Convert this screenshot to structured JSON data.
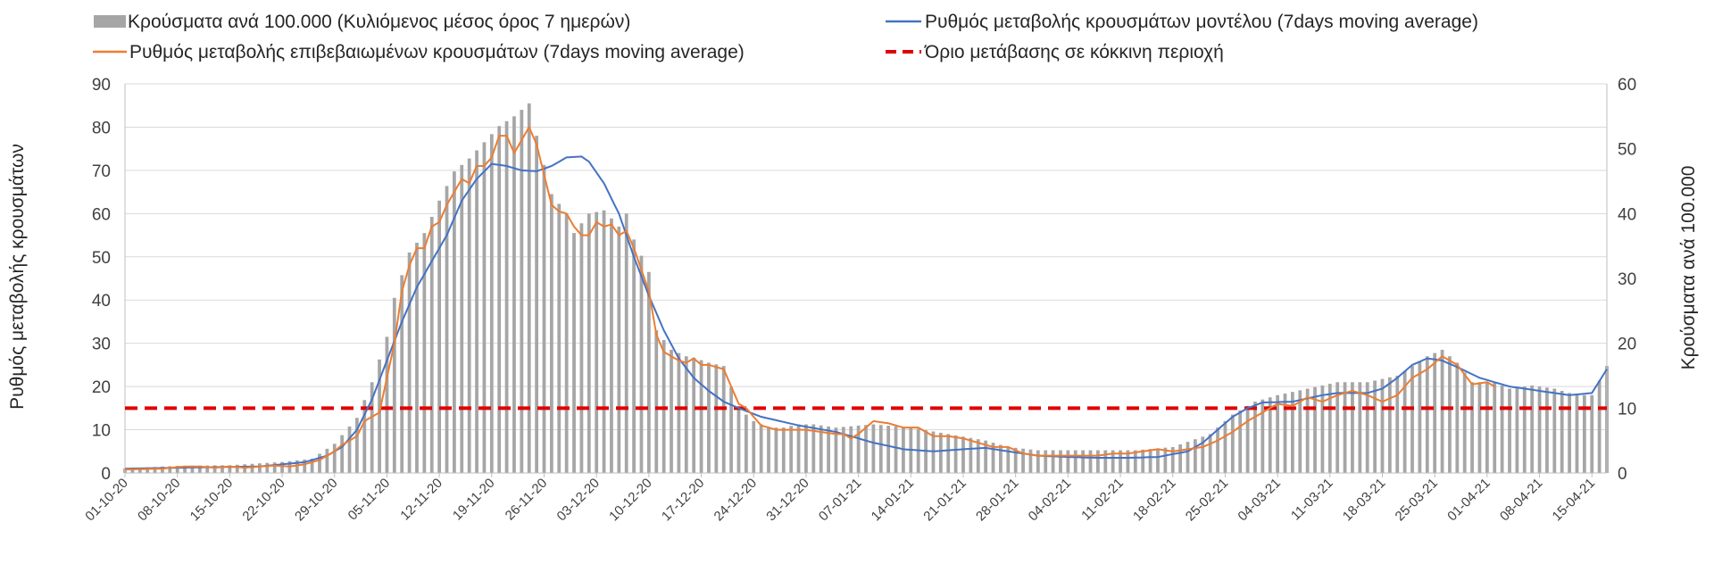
{
  "chart_data": {
    "type": "bar",
    "title": "",
    "left_axis": {
      "label": "Ρυθμός μεταβολής κρουσμάτων",
      "ylim": [
        0,
        90
      ],
      "ticks": [
        0,
        10,
        20,
        30,
        40,
        50,
        60,
        70,
        80,
        90
      ]
    },
    "right_axis": {
      "label": "Κρούσματα ανά 100.000",
      "ylim": [
        0,
        60
      ],
      "ticks": [
        0,
        10,
        20,
        30,
        40,
        50,
        60
      ]
    },
    "x_tick_labels": [
      "01-10-20",
      "08-10-20",
      "15-10-20",
      "22-10-20",
      "29-10-20",
      "05-11-20",
      "12-11-20",
      "19-11-20",
      "26-11-20",
      "03-12-20",
      "10-12-20",
      "17-12-20",
      "24-12-20",
      "31-12-20",
      "07-01-21",
      "14-01-21",
      "21-01-21",
      "28-01-21",
      "04-02-21",
      "11-02-21",
      "18-02-21",
      "25-02-21",
      "04-03-21",
      "11-03-21",
      "18-03-21",
      "25-03-21",
      "01-04-21",
      "08-04-21",
      "15-04-21"
    ],
    "grid": true,
    "legend_position": "top",
    "threshold": 15,
    "colors": {
      "bars": "#a6a6a6",
      "model": "#4472c4",
      "confirmed": "#ed7d31",
      "threshold": "#e00000"
    },
    "series": [
      {
        "name": "Κρούσματα ανά 100.000 (Κυλιόμενος μέσος όρος 7 ημερών)",
        "axis": "right",
        "type": "bar",
        "anchors": [
          [
            0,
            0.7
          ],
          [
            7,
            1.1
          ],
          [
            14,
            1.2
          ],
          [
            21,
            1.7
          ],
          [
            25,
            2.2
          ],
          [
            28,
            4.5
          ],
          [
            31,
            8.5
          ],
          [
            33,
            14
          ],
          [
            35,
            21
          ],
          [
            36,
            27
          ],
          [
            38,
            34
          ],
          [
            40,
            37
          ],
          [
            42,
            42
          ],
          [
            44,
            46.5
          ],
          [
            46,
            48.5
          ],
          [
            48,
            51
          ],
          [
            50,
            53.5
          ],
          [
            52,
            55
          ],
          [
            54,
            57
          ],
          [
            55,
            52
          ],
          [
            57,
            43
          ],
          [
            59,
            40
          ],
          [
            60,
            37
          ],
          [
            62,
            40
          ],
          [
            64,
            40.5
          ],
          [
            66,
            38
          ],
          [
            67,
            40
          ],
          [
            68,
            36
          ],
          [
            70,
            31
          ],
          [
            71,
            22
          ],
          [
            73,
            19
          ],
          [
            75,
            18
          ],
          [
            76,
            17.8
          ],
          [
            78,
            17
          ],
          [
            80,
            16.5
          ],
          [
            82,
            10
          ],
          [
            84,
            8
          ],
          [
            86,
            7
          ],
          [
            88,
            7
          ],
          [
            90,
            7.5
          ],
          [
            92,
            7.5
          ],
          [
            95,
            7
          ],
          [
            100,
            7.5
          ],
          [
            105,
            7
          ],
          [
            110,
            6
          ],
          [
            115,
            5
          ],
          [
            118,
            4
          ],
          [
            122,
            3.5
          ],
          [
            126,
            3.5
          ],
          [
            130,
            3.5
          ],
          [
            135,
            3.5
          ],
          [
            140,
            4
          ],
          [
            145,
            6
          ],
          [
            148,
            9
          ],
          [
            151,
            11
          ],
          [
            154,
            12
          ],
          [
            158,
            13
          ],
          [
            162,
            14
          ],
          [
            166,
            14
          ],
          [
            170,
            15
          ],
          [
            174,
            18
          ],
          [
            176,
            19
          ],
          [
            178,
            17
          ],
          [
            180,
            14
          ],
          [
            183,
            14
          ],
          [
            185,
            13
          ],
          [
            188,
            13.5
          ],
          [
            191,
            13
          ],
          [
            194,
            12
          ],
          [
            196,
            12
          ],
          [
            198,
            16.5
          ]
        ]
      },
      {
        "name": "Ρυθμός μεταβολής κρουσμάτων μοντέλου (7days moving average)",
        "axis": "left",
        "type": "line",
        "anchors": [
          [
            0,
            1
          ],
          [
            10,
            1.3
          ],
          [
            18,
            1.5
          ],
          [
            24,
            2.5
          ],
          [
            27,
            4
          ],
          [
            29,
            6
          ],
          [
            31,
            10
          ],
          [
            33,
            17
          ],
          [
            35,
            26
          ],
          [
            37,
            35
          ],
          [
            39,
            43
          ],
          [
            41,
            49
          ],
          [
            43,
            55
          ],
          [
            45,
            63
          ],
          [
            47,
            68
          ],
          [
            49,
            71.5
          ],
          [
            51,
            71
          ],
          [
            53,
            70
          ],
          [
            55,
            69.8
          ],
          [
            57,
            71
          ],
          [
            59,
            73
          ],
          [
            61,
            73.2
          ],
          [
            62,
            72
          ],
          [
            64,
            67
          ],
          [
            66,
            60
          ],
          [
            68,
            50
          ],
          [
            70,
            41
          ],
          [
            72,
            33
          ],
          [
            74,
            26.5
          ],
          [
            76,
            22
          ],
          [
            78,
            19
          ],
          [
            80,
            16.5
          ],
          [
            82,
            15
          ],
          [
            85,
            13
          ],
          [
            90,
            11
          ],
          [
            95,
            9.5
          ],
          [
            100,
            7
          ],
          [
            104,
            5.5
          ],
          [
            108,
            5
          ],
          [
            112,
            5.5
          ],
          [
            115,
            5.8
          ],
          [
            118,
            5
          ],
          [
            122,
            4
          ],
          [
            126,
            3.7
          ],
          [
            130,
            3.5
          ],
          [
            134,
            3.5
          ],
          [
            138,
            3.7
          ],
          [
            142,
            5
          ],
          [
            144,
            7
          ],
          [
            146,
            10
          ],
          [
            148,
            13
          ],
          [
            150,
            15
          ],
          [
            152,
            16.3
          ],
          [
            156,
            16.5
          ],
          [
            160,
            18
          ],
          [
            162,
            18.5
          ],
          [
            166,
            18.5
          ],
          [
            168,
            19.5
          ],
          [
            170,
            22
          ],
          [
            172,
            25
          ],
          [
            174,
            26.5
          ],
          [
            176,
            26
          ],
          [
            178,
            24.5
          ],
          [
            181,
            22
          ],
          [
            185,
            20
          ],
          [
            189,
            19
          ],
          [
            193,
            18
          ],
          [
            196,
            18.5
          ],
          [
            198,
            24
          ]
        ]
      },
      {
        "name": "Ρυθμός μεταβολής επιβεβαιωμένων κρουσμάτων (7days moving average)",
        "axis": "left",
        "type": "line",
        "anchors": [
          [
            0,
            0.8
          ],
          [
            5,
            1
          ],
          [
            8,
            1.5
          ],
          [
            10,
            1.5
          ],
          [
            12,
            1.2
          ],
          [
            14,
            1.5
          ],
          [
            16,
            1.2
          ],
          [
            18,
            1.5
          ],
          [
            20,
            1.7
          ],
          [
            22,
            1.5
          ],
          [
            24,
            2
          ],
          [
            26,
            3
          ],
          [
            27,
            4
          ],
          [
            28,
            5
          ],
          [
            29,
            6.5
          ],
          [
            31,
            8.5
          ],
          [
            32,
            12
          ],
          [
            34,
            14
          ],
          [
            35,
            22
          ],
          [
            36,
            30
          ],
          [
            37,
            42
          ],
          [
            38,
            48
          ],
          [
            39,
            52
          ],
          [
            40,
            52
          ],
          [
            41,
            57
          ],
          [
            42,
            58
          ],
          [
            43,
            62
          ],
          [
            44,
            65
          ],
          [
            45,
            68
          ],
          [
            46,
            67
          ],
          [
            47,
            71
          ],
          [
            48,
            71
          ],
          [
            49,
            73
          ],
          [
            50,
            78
          ],
          [
            51,
            78
          ],
          [
            52,
            74
          ],
          [
            53,
            77
          ],
          [
            54,
            80
          ],
          [
            55,
            76
          ],
          [
            57,
            62
          ],
          [
            58,
            60.5
          ],
          [
            59,
            60
          ],
          [
            60,
            57
          ],
          [
            61,
            55
          ],
          [
            62,
            55
          ],
          [
            63,
            58
          ],
          [
            64,
            57
          ],
          [
            65,
            57.5
          ],
          [
            66,
            55
          ],
          [
            67,
            56
          ],
          [
            68,
            52
          ],
          [
            70,
            42
          ],
          [
            71,
            32
          ],
          [
            72,
            28
          ],
          [
            73,
            27
          ],
          [
            74,
            26
          ],
          [
            75,
            25.5
          ],
          [
            76,
            26.5
          ],
          [
            77,
            25
          ],
          [
            78,
            25
          ],
          [
            79,
            24.5
          ],
          [
            80,
            24
          ],
          [
            81,
            20
          ],
          [
            82,
            16
          ],
          [
            83,
            15
          ],
          [
            85,
            11
          ],
          [
            87,
            10
          ],
          [
            89,
            10
          ],
          [
            91,
            10
          ],
          [
            93,
            9.5
          ],
          [
            95,
            9
          ],
          [
            96,
            9
          ],
          [
            97,
            8
          ],
          [
            98,
            9
          ],
          [
            100,
            12
          ],
          [
            102,
            11.5
          ],
          [
            104,
            10.5
          ],
          [
            106,
            10.5
          ],
          [
            108,
            8.5
          ],
          [
            110,
            8.5
          ],
          [
            112,
            8
          ],
          [
            114,
            7
          ],
          [
            116,
            6
          ],
          [
            118,
            6
          ],
          [
            120,
            4.5
          ],
          [
            122,
            4
          ],
          [
            124,
            4
          ],
          [
            126,
            4
          ],
          [
            128,
            4
          ],
          [
            130,
            4
          ],
          [
            132,
            4.5
          ],
          [
            134,
            4.5
          ],
          [
            136,
            5
          ],
          [
            138,
            5.5
          ],
          [
            140,
            5
          ],
          [
            142,
            5.5
          ],
          [
            144,
            6
          ],
          [
            146,
            7.5
          ],
          [
            148,
            9.5
          ],
          [
            150,
            12
          ],
          [
            152,
            14
          ],
          [
            154,
            16
          ],
          [
            156,
            15.5
          ],
          [
            158,
            17.5
          ],
          [
            160,
            16.5
          ],
          [
            162,
            18
          ],
          [
            164,
            19
          ],
          [
            166,
            18
          ],
          [
            168,
            16.5
          ],
          [
            170,
            18
          ],
          [
            172,
            22
          ],
          [
            174,
            24
          ],
          [
            176,
            27
          ],
          [
            178,
            25
          ],
          [
            180,
            20.5
          ],
          [
            182,
            21
          ],
          [
            183,
            20
          ]
        ]
      }
    ]
  },
  "legend": {
    "bars_label": "Κρούσματα ανά 100.000 (Κυλιόμενος μέσος όρος 7 ημερών)",
    "model_label": "Ρυθμός μεταβολής κρουσμάτων μοντέλου (7days moving average)",
    "confirmed_label": "Ρυθμός μεταβολής επιβεβαιωμένων κρουσμάτων (7days moving average)",
    "threshold_label": "Όριο μετάβασης σε κόκκινη περιοχή"
  }
}
